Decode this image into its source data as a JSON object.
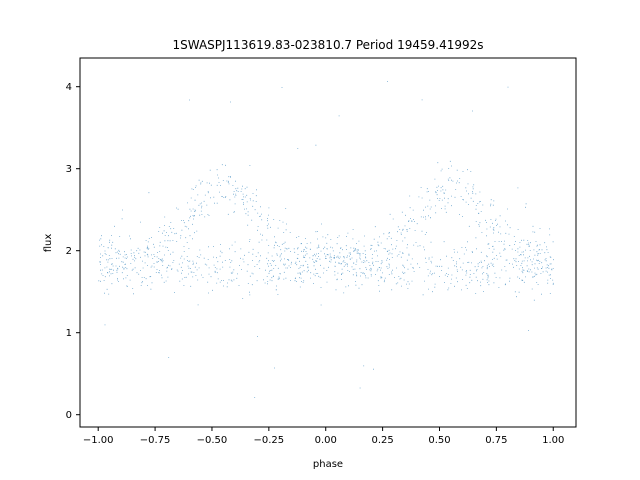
{
  "chart_data": {
    "type": "scatter",
    "title": "1SWASPJ113619.83-023810.7 Period 19459.41992s",
    "xlabel": "phase",
    "ylabel": "flux",
    "xlim": [
      -1.08,
      1.1
    ],
    "ylim": [
      -0.15,
      4.35
    ],
    "x_ticks": [
      -1.0,
      -0.75,
      -0.5,
      -0.25,
      0.0,
      0.25,
      0.5,
      0.75,
      1.0
    ],
    "x_tick_labels": [
      "−1.00",
      "−0.75",
      "−0.50",
      "−0.25",
      "0.00",
      "0.25",
      "0.50",
      "0.75",
      "1.00"
    ],
    "y_ticks": [
      0,
      1,
      2,
      3,
      4
    ],
    "y_tick_labels": [
      "0",
      "1",
      "2",
      "3",
      "4"
    ],
    "grid": false,
    "point_color": "#1f77b4",
    "series": [
      {
        "x_range": [
          -1.0,
          1.0
        ],
        "baseline_flux": 1.8,
        "hump_peak_flux": 2.75,
        "hump_centers_phase": [
          -0.45,
          0.55
        ],
        "notes_visual": "phase-folded light curve, two broad humps per cycle"
      }
    ]
  }
}
